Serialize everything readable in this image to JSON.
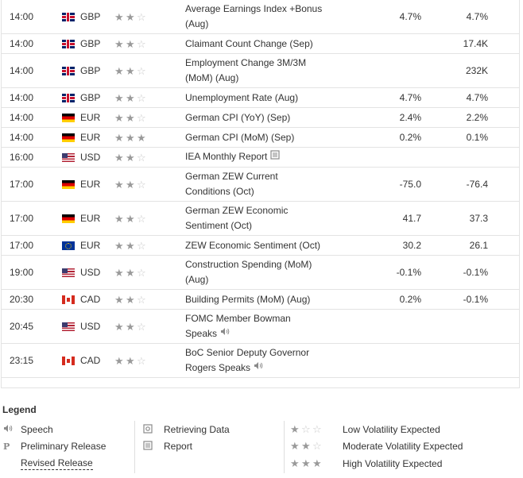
{
  "rows": [
    {
      "time": "14:00",
      "flag": "gb",
      "currency": "GBP",
      "stars": 2,
      "event_line1": "Average Earnings Index +Bonus",
      "event_line2": "(Aug)",
      "actual": "4.7%",
      "forecast": "4.7%",
      "event_icon": ""
    },
    {
      "time": "14:00",
      "flag": "gb",
      "currency": "GBP",
      "stars": 2,
      "event_line1": "Claimant Count Change (Sep)",
      "event_line2": "",
      "actual": "",
      "forecast": "17.4K",
      "event_icon": ""
    },
    {
      "time": "14:00",
      "flag": "gb",
      "currency": "GBP",
      "stars": 2,
      "event_line1": "Employment Change 3M/3M",
      "event_line2": "(MoM) (Aug)",
      "actual": "",
      "forecast": "232K",
      "event_icon": ""
    },
    {
      "time": "14:00",
      "flag": "gb",
      "currency": "GBP",
      "stars": 2,
      "event_line1": "Unemployment Rate (Aug)",
      "event_line2": "",
      "actual": "4.7%",
      "forecast": "4.7%",
      "event_icon": ""
    },
    {
      "time": "14:00",
      "flag": "de",
      "currency": "EUR",
      "stars": 2,
      "event_line1": "German CPI (YoY) (Sep)",
      "event_line2": "",
      "actual": "2.4%",
      "forecast": "2.2%",
      "event_icon": ""
    },
    {
      "time": "14:00",
      "flag": "de",
      "currency": "EUR",
      "stars": 3,
      "event_line1": "German CPI (MoM) (Sep)",
      "event_line2": "",
      "actual": "0.2%",
      "forecast": "0.1%",
      "event_icon": ""
    },
    {
      "time": "16:00",
      "flag": "us",
      "currency": "USD",
      "stars": 2,
      "event_line1": "IEA Monthly Report",
      "event_line2": "",
      "actual": "",
      "forecast": "",
      "event_icon": "report-icon"
    },
    {
      "time": "17:00",
      "flag": "de",
      "currency": "EUR",
      "stars": 2,
      "event_line1": "German ZEW Current",
      "event_line2": "Conditions (Oct)",
      "actual": "-75.0",
      "forecast": "-76.4",
      "event_icon": ""
    },
    {
      "time": "17:00",
      "flag": "de",
      "currency": "EUR",
      "stars": 2,
      "event_line1": "German ZEW Economic",
      "event_line2": "Sentiment (Oct)",
      "actual": "41.7",
      "forecast": "37.3",
      "event_icon": ""
    },
    {
      "time": "17:00",
      "flag": "eu",
      "currency": "EUR",
      "stars": 2,
      "event_line1": "ZEW Economic Sentiment (Oct)",
      "event_line2": "",
      "actual": "30.2",
      "forecast": "26.1",
      "event_icon": ""
    },
    {
      "time": "19:00",
      "flag": "us",
      "currency": "USD",
      "stars": 2,
      "event_line1": "Construction Spending (MoM)",
      "event_line2": "(Aug)",
      "actual": "-0.1%",
      "forecast": "-0.1%",
      "event_icon": ""
    },
    {
      "time": "20:30",
      "flag": "ca",
      "currency": "CAD",
      "stars": 2,
      "event_line1": "Building Permits (MoM) (Aug)",
      "event_line2": "",
      "actual": "0.2%",
      "forecast": "-0.1%",
      "event_icon": ""
    },
    {
      "time": "20:45",
      "flag": "us",
      "currency": "USD",
      "stars": 2,
      "event_line1": "FOMC Member Bowman",
      "event_line2": "Speaks",
      "actual": "",
      "forecast": "",
      "event_icon": "speech-icon"
    },
    {
      "time": "23:15",
      "flag": "ca",
      "currency": "CAD",
      "stars": 2,
      "event_line1": "BoC Senior Deputy Governor",
      "event_line2": "Rogers Speaks",
      "actual": "",
      "forecast": "",
      "event_icon": "speech-icon"
    }
  ],
  "legend": {
    "title": "Legend",
    "speech": "Speech",
    "preliminary": "Preliminary Release",
    "revised": "Revised Release",
    "retrieving": "Retrieving Data",
    "report": "Report",
    "low": "Low Volatility Expected",
    "moderate": "Moderate Volatility Expected",
    "high": "High Volatility Expected",
    "preliminary_glyph": "P"
  },
  "colors": {
    "border": "#e3e3e3",
    "star_full": "#9a9a9a",
    "star_empty": "#c8c8c8",
    "text": "#333333"
  }
}
